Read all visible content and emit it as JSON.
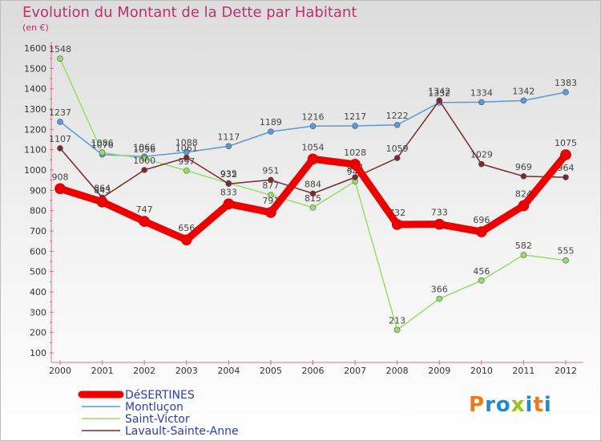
{
  "title": "Evolution du Montant de la Dette par Habitant",
  "unit": "(en €)",
  "logo": {
    "letters": [
      "P",
      "r",
      "o",
      "x",
      "i",
      "t",
      "i"
    ],
    "colors": [
      "#f07a17",
      "#1f8bd6",
      "#1f8bd6",
      "#9bc41b",
      "#1f8bd6",
      "#f07a17",
      "#1f8bd6"
    ]
  },
  "chart_data": {
    "type": "line",
    "x": [
      "2000",
      "2001",
      "2002",
      "2003",
      "2004",
      "2005",
      "2006",
      "2007",
      "2008",
      "2009",
      "2010",
      "2011",
      "2012"
    ],
    "ylim": [
      100,
      1600
    ],
    "yticks": [
      100,
      200,
      300,
      400,
      500,
      600,
      700,
      800,
      900,
      1000,
      1100,
      1200,
      1300,
      1400,
      1500,
      1600
    ],
    "grid": false,
    "legend_position": "bottom-left",
    "series": [
      {
        "name": "Montluçon",
        "color": "#5a9ad6",
        "width": 1.5,
        "marker": 3.5,
        "values": [
          1237,
          1076,
          1066,
          1088,
          1117,
          1189,
          1216,
          1217,
          1222,
          1332,
          1334,
          1342,
          1383
        ]
      },
      {
        "name": "Saint-Victor",
        "color": "#99dd66",
        "width": 1.5,
        "marker": 3.5,
        "values": [
          1548,
          1086,
          1056,
          997,
          935,
          877,
          815,
          944,
          213,
          366,
          456,
          582,
          555
        ]
      },
      {
        "name": "Lavault-Sainte-Anne",
        "color": "#7a2a2a",
        "width": 1.5,
        "marker": 3.5,
        "values": [
          1107,
          864,
          1000,
          1061,
          932,
          951,
          884,
          964,
          1059,
          1342,
          1029,
          969,
          964
        ]
      },
      {
        "name": "DéSERTINES",
        "color": "#ee0000",
        "width": 9,
        "marker": 6.5,
        "values": [
          908,
          843,
          747,
          656,
          833,
          791,
          1054,
          1028,
          732,
          733,
          696,
          824,
          1075
        ]
      }
    ]
  }
}
